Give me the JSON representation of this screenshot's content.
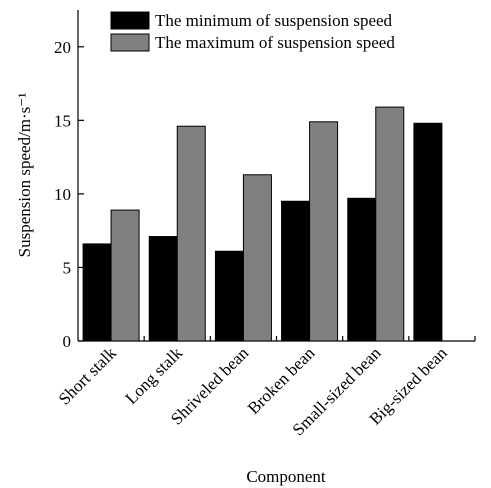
{
  "chart_data": {
    "type": "bar",
    "title": "",
    "xlabel": "Component",
    "ylabel": "Suspension speed/m·s⁻¹",
    "categories": [
      "Short stalk",
      "Long stalk",
      "Shriveled bean",
      "Broken bean",
      "Small-sized bean",
      "Big-sized bean"
    ],
    "series": [
      {
        "name": "The minimum of suspension speed",
        "values": [
          6.6,
          7.1,
          6.1,
          9.5,
          9.7,
          14.8
        ],
        "color": "#000000"
      },
      {
        "name": "The maximum of suspension speed",
        "values": [
          8.9,
          14.6,
          11.3,
          14.9,
          15.9,
          0
        ],
        "color": "#808080"
      }
    ],
    "ylim": [
      0,
      22.5
    ],
    "yticks": [
      0,
      5,
      10,
      15,
      20
    ],
    "legend_position": "top-left",
    "grid": false
  }
}
